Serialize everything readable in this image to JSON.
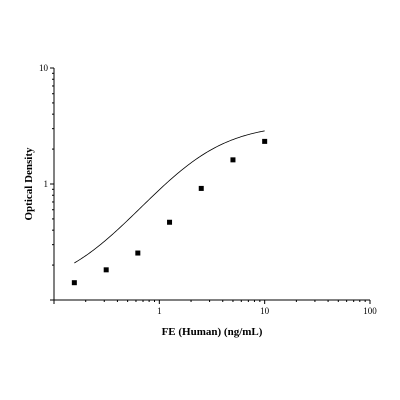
{
  "chart_data": {
    "type": "scatter",
    "title": "",
    "xlabel": "FE (Human) (ng/mL)",
    "ylabel": "Optical Density",
    "x_scale": "log",
    "y_scale": "log",
    "xlim": [
      0.1,
      100
    ],
    "ylim": [
      0.1,
      10
    ],
    "x_ticks": [
      {
        "value": 1,
        "label": "1"
      },
      {
        "value": 10,
        "label": "10"
      },
      {
        "value": 100,
        "label": "100"
      }
    ],
    "y_ticks": [
      {
        "value": 1,
        "label": "1"
      },
      {
        "value": 10,
        "label": "10"
      }
    ],
    "grid": false,
    "legend": "none",
    "series": [
      {
        "x": [
          0.156,
          0.313,
          0.625,
          1.25,
          2.5,
          5,
          10
        ],
        "y": [
          0.141,
          0.182,
          0.254,
          0.468,
          0.916,
          1.615,
          2.33
        ]
      }
    ],
    "fit_curve": {
      "model": "4PL",
      "bottom": 0.12,
      "top": 3.3,
      "ec50": 2.4,
      "hill": 1.3
    }
  }
}
